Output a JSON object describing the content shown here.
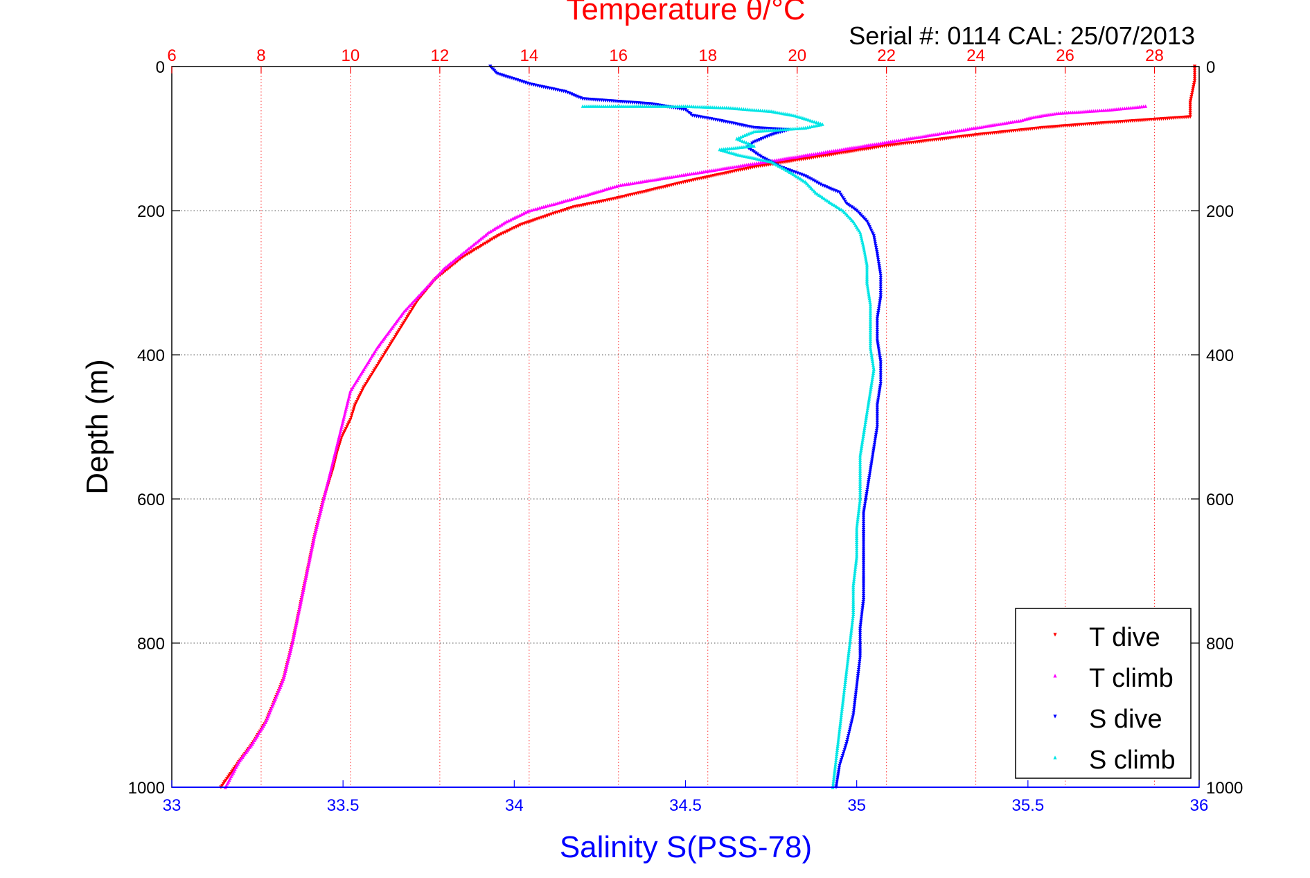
{
  "chart_data": {
    "type": "scatter",
    "title": "Temperature θ/°C",
    "subtitle": "Serial #: 0114  CAL: 25/07/2013",
    "ylabel": "Depth (m)",
    "xlabel_bottom": "Salinity S(PSS-78)",
    "xlabel_top": "Temperature θ/°C",
    "y_axis": {
      "range": [
        0,
        1000
      ],
      "reversed": true,
      "ticks": [
        0,
        200,
        400,
        600,
        800,
        1000
      ],
      "tick_labels": [
        "0",
        "200",
        "400",
        "600",
        "800",
        "1000"
      ]
    },
    "x_axis_top": {
      "range": [
        6,
        29
      ],
      "ticks": [
        6,
        8,
        10,
        12,
        14,
        16,
        18,
        20,
        22,
        24,
        26,
        28
      ],
      "tick_labels": [
        "6",
        "8",
        "10",
        "12",
        "14",
        "16",
        "18",
        "20",
        "22",
        "24",
        "26",
        "28"
      ],
      "color": "#ff0000"
    },
    "x_axis_bottom": {
      "range": [
        33,
        36
      ],
      "ticks": [
        33,
        33.5,
        34,
        34.5,
        35,
        35.5,
        36
      ],
      "tick_labels": [
        "33",
        "33.5",
        "34",
        "34.5",
        "35",
        "35.5",
        "36"
      ],
      "color": "#0000ff"
    },
    "grid": true,
    "legend": {
      "position": "bottom-right",
      "entries": [
        "T dive",
        "T climb",
        "S dive",
        "S climb"
      ]
    },
    "series": [
      {
        "name": "T dive",
        "axis": "temperature",
        "color": "#ff0000",
        "marker": "triangle-down",
        "points": [
          [
            28.9,
            0
          ],
          [
            28.9,
            20
          ],
          [
            28.8,
            50
          ],
          [
            28.8,
            70
          ],
          [
            26.5,
            80
          ],
          [
            25.5,
            85
          ],
          [
            24,
            95
          ],
          [
            22,
            110
          ],
          [
            20.5,
            125
          ],
          [
            19,
            140
          ],
          [
            17.5,
            160
          ],
          [
            16.5,
            175
          ],
          [
            15.8,
            185
          ],
          [
            15,
            195
          ],
          [
            14.5,
            205
          ],
          [
            13.8,
            220
          ],
          [
            13.3,
            235
          ],
          [
            12.9,
            250
          ],
          [
            12.5,
            265
          ],
          [
            12.2,
            280
          ],
          [
            11.9,
            295
          ],
          [
            11.7,
            310
          ],
          [
            11.5,
            325
          ],
          [
            11.3,
            345
          ],
          [
            11.1,
            365
          ],
          [
            10.9,
            385
          ],
          [
            10.7,
            405
          ],
          [
            10.5,
            425
          ],
          [
            10.3,
            445
          ],
          [
            10.1,
            470
          ],
          [
            10,
            490
          ],
          [
            9.8,
            515
          ],
          [
            9.7,
            535
          ],
          [
            9.6,
            560
          ],
          [
            9.5,
            580
          ],
          [
            9.4,
            600
          ],
          [
            9.3,
            625
          ],
          [
            9.2,
            650
          ],
          [
            9.1,
            680
          ],
          [
            9,
            710
          ],
          [
            8.9,
            740
          ],
          [
            8.8,
            770
          ],
          [
            8.7,
            800
          ],
          [
            8.6,
            825
          ],
          [
            8.5,
            850
          ],
          [
            8.3,
            880
          ],
          [
            8.1,
            910
          ],
          [
            7.8,
            940
          ],
          [
            7.5,
            965
          ],
          [
            7.1,
            1000
          ]
        ]
      },
      {
        "name": "T climb",
        "axis": "temperature",
        "color": "#ff00ff",
        "marker": "triangle-up",
        "points": [
          [
            27.8,
            55
          ],
          [
            27,
            60
          ],
          [
            25.8,
            65
          ],
          [
            25.3,
            70
          ],
          [
            25,
            75
          ],
          [
            24,
            85
          ],
          [
            22,
            105
          ],
          [
            20,
            125
          ],
          [
            18.5,
            140
          ],
          [
            17,
            155
          ],
          [
            16,
            165
          ],
          [
            15.3,
            178
          ],
          [
            14.6,
            190
          ],
          [
            14,
            200
          ],
          [
            13.5,
            215
          ],
          [
            13.1,
            230
          ],
          [
            12.8,
            245
          ],
          [
            12.5,
            260
          ],
          [
            12.1,
            280
          ],
          [
            11.8,
            300
          ],
          [
            11.5,
            320
          ],
          [
            11.2,
            340
          ],
          [
            10.9,
            365
          ],
          [
            10.6,
            390
          ],
          [
            10.4,
            410
          ],
          [
            10.2,
            430
          ],
          [
            10,
            450
          ],
          [
            9.9,
            475
          ],
          [
            9.8,
            500
          ],
          [
            9.7,
            525
          ],
          [
            9.6,
            550
          ],
          [
            9.5,
            575
          ],
          [
            9.4,
            600
          ],
          [
            9.3,
            625
          ],
          [
            9.2,
            650
          ],
          [
            9.1,
            680
          ],
          [
            9,
            710
          ],
          [
            8.9,
            740
          ],
          [
            8.8,
            770
          ],
          [
            8.7,
            800
          ],
          [
            8.6,
            825
          ],
          [
            8.5,
            850
          ],
          [
            8.3,
            880
          ],
          [
            8.1,
            910
          ],
          [
            7.8,
            940
          ],
          [
            7.5,
            965
          ],
          [
            7.2,
            1000
          ]
        ]
      },
      {
        "name": "S dive",
        "axis": "salinity",
        "color": "#0000ff",
        "marker": "triangle-down",
        "points": [
          [
            33.93,
            0
          ],
          [
            33.95,
            10
          ],
          [
            34.05,
            25
          ],
          [
            34.15,
            35
          ],
          [
            34.2,
            45
          ],
          [
            34.4,
            52
          ],
          [
            34.5,
            60
          ],
          [
            34.52,
            68
          ],
          [
            34.6,
            75
          ],
          [
            34.7,
            85
          ],
          [
            34.8,
            88
          ],
          [
            34.75,
            95
          ],
          [
            34.7,
            105
          ],
          [
            34.68,
            112
          ],
          [
            34.72,
            125
          ],
          [
            34.78,
            140
          ],
          [
            34.85,
            152
          ],
          [
            34.9,
            165
          ],
          [
            34.95,
            175
          ],
          [
            34.97,
            190
          ],
          [
            35,
            200
          ],
          [
            35.03,
            215
          ],
          [
            35.05,
            235
          ],
          [
            35.06,
            260
          ],
          [
            35.07,
            290
          ],
          [
            35.07,
            320
          ],
          [
            35.06,
            350
          ],
          [
            35.06,
            380
          ],
          [
            35.07,
            410
          ],
          [
            35.07,
            440
          ],
          [
            35.06,
            470
          ],
          [
            35.06,
            500
          ],
          [
            35.05,
            530
          ],
          [
            35.04,
            560
          ],
          [
            35.03,
            590
          ],
          [
            35.02,
            620
          ],
          [
            35.02,
            660
          ],
          [
            35.02,
            700
          ],
          [
            35.02,
            740
          ],
          [
            35.01,
            780
          ],
          [
            35.01,
            820
          ],
          [
            35,
            860
          ],
          [
            34.99,
            900
          ],
          [
            34.97,
            940
          ],
          [
            34.95,
            970
          ],
          [
            34.94,
            1000
          ]
        ]
      },
      {
        "name": "S climb",
        "axis": "salinity",
        "color": "#00e5e5",
        "marker": "triangle-up",
        "points": [
          [
            34.2,
            55
          ],
          [
            34.35,
            55
          ],
          [
            34.5,
            55
          ],
          [
            34.62,
            57
          ],
          [
            34.75,
            62
          ],
          [
            34.82,
            68
          ],
          [
            34.9,
            80
          ],
          [
            34.85,
            85
          ],
          [
            34.7,
            90
          ],
          [
            34.65,
            100
          ],
          [
            34.7,
            110
          ],
          [
            34.6,
            115
          ],
          [
            34.65,
            122
          ],
          [
            34.75,
            132
          ],
          [
            34.8,
            145
          ],
          [
            34.85,
            160
          ],
          [
            34.88,
            175
          ],
          [
            34.92,
            188
          ],
          [
            34.96,
            200
          ],
          [
            34.99,
            215
          ],
          [
            35.01,
            230
          ],
          [
            35.02,
            250
          ],
          [
            35.03,
            275
          ],
          [
            35.03,
            300
          ],
          [
            35.04,
            330
          ],
          [
            35.04,
            360
          ],
          [
            35.04,
            390
          ],
          [
            35.05,
            420
          ],
          [
            35.04,
            450
          ],
          [
            35.03,
            480
          ],
          [
            35.02,
            510
          ],
          [
            35.01,
            540
          ],
          [
            35.01,
            570
          ],
          [
            35.01,
            600
          ],
          [
            35,
            640
          ],
          [
            35,
            680
          ],
          [
            34.99,
            720
          ],
          [
            34.99,
            760
          ],
          [
            34.98,
            800
          ],
          [
            34.97,
            840
          ],
          [
            34.96,
            880
          ],
          [
            34.95,
            920
          ],
          [
            34.94,
            960
          ],
          [
            34.93,
            1000
          ]
        ]
      }
    ]
  }
}
